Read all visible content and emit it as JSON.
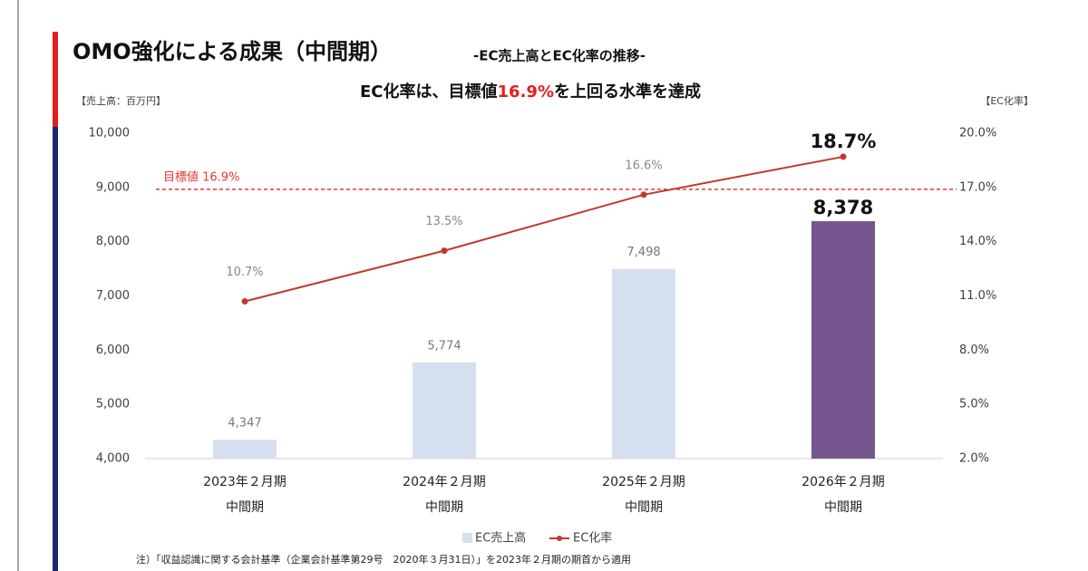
{
  "chart_data": {
    "type": "bar",
    "title": "OMO強化による成果（中間期）",
    "subtitle": "-EC売上高とEC化率の推移-",
    "headline": {
      "before": "EC化率は、目標値",
      "highlight": "16.9%",
      "after": "を上回る水準を達成"
    },
    "y_label": "【売上高：百万円】",
    "y2_label": "【EC化率】",
    "categories": [
      [
        "2023年２月期",
        "中間期"
      ],
      [
        "2024年２月期",
        "中間期"
      ],
      [
        "2025年２月期",
        "中間期"
      ],
      [
        "2026年２月期",
        "中間期"
      ]
    ],
    "series": [
      {
        "name": "EC売上高",
        "type": "bar",
        "color": "#d6dff0",
        "colors": [
          "#d6dff0",
          "#d6dff0",
          "#d6dff0",
          "#76568f"
        ],
        "values": [
          4347,
          5774,
          7498,
          8378
        ],
        "value_labels": [
          "4,347",
          "5,774",
          "7,498",
          "8,378"
        ]
      },
      {
        "name": "EC化率",
        "type": "line",
        "axis": "y2",
        "color": "#c0392b",
        "values": [
          10.7,
          13.5,
          16.6,
          18.7
        ],
        "value_labels": [
          "10.7%",
          "13.5%",
          "16.6%",
          "18.7%"
        ]
      }
    ],
    "ylim": [
      4000,
      10000
    ],
    "yticks": [
      {
        "value": 4000,
        "label": "4,000"
      },
      {
        "value": 5000,
        "label": "5,000"
      },
      {
        "value": 6000,
        "label": "6,000"
      },
      {
        "value": 7000,
        "label": "7,000"
      },
      {
        "value": 8000,
        "label": "8,000"
      },
      {
        "value": 9000,
        "label": "9,000"
      },
      {
        "value": 10000,
        "label": "10,000"
      }
    ],
    "y2lim": [
      2,
      20
    ],
    "y2ticks": [
      {
        "value": 2,
        "label": "2.0%"
      },
      {
        "value": 5,
        "label": "5.0%"
      },
      {
        "value": 8,
        "label": "8.0%"
      },
      {
        "value": 11,
        "label": "11.0%"
      },
      {
        "value": 14,
        "label": "14.0%"
      },
      {
        "value": 17,
        "label": "17.0%"
      },
      {
        "value": 20,
        "label": "20.0%"
      }
    ],
    "target": {
      "value": 16.9,
      "label": "目標値 16.9%",
      "axis": "y2",
      "color": "#e53935"
    },
    "grid": false,
    "note": "注）「収益認識に関する会計基準（企業会計基準第29号　2020年３月31日）」を2023年２月期の期首から適用"
  }
}
